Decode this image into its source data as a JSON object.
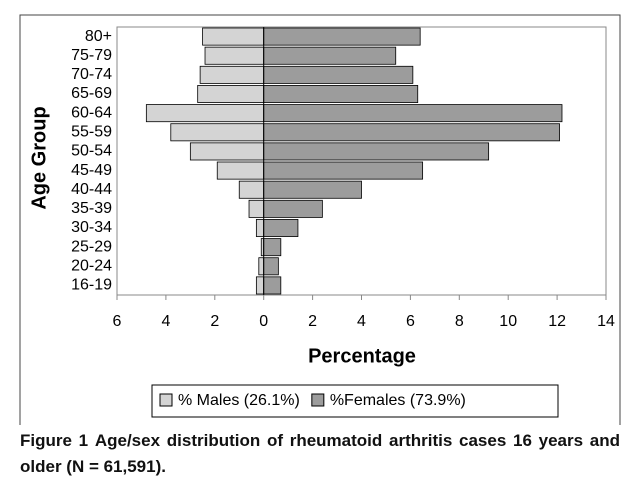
{
  "chart_data": {
    "type": "pyramid",
    "x_label": "Percentage",
    "y_label": "Age Group",
    "categories": [
      "80+",
      "75-79",
      "70-74",
      "65-69",
      "60-64",
      "55-59",
      "50-54",
      "45-49",
      "40-44",
      "35-39",
      "30-34",
      "25-29",
      "20-24",
      "16-19"
    ],
    "series": [
      {
        "name": "% Males (26.1%)",
        "color": "#d4d4d4",
        "side": "left",
        "values": [
          2.5,
          2.4,
          2.6,
          2.7,
          4.8,
          3.8,
          3.0,
          1.9,
          1.0,
          0.6,
          0.3,
          0.1,
          0.2,
          0.3
        ]
      },
      {
        "name": "%Females (73.9%)",
        "color": "#9c9c9c",
        "side": "right",
        "values": [
          6.4,
          5.4,
          6.1,
          6.3,
          12.2,
          12.1,
          9.2,
          6.5,
          4.0,
          2.4,
          1.4,
          0.7,
          0.6,
          0.7
        ]
      }
    ],
    "xlim": [
      -6,
      14
    ],
    "xticks": [
      {
        "value": -6,
        "label": "6"
      },
      {
        "value": -4,
        "label": "4"
      },
      {
        "value": -2,
        "label": "2"
      },
      0,
      2,
      4,
      6,
      8,
      10,
      12,
      14
    ],
    "grid": false,
    "caption": {
      "label": "Figure 1",
      "text": "Age/sex distribution of rheumatoid arthritis cases 16 years and older (N = 61,591)."
    }
  }
}
